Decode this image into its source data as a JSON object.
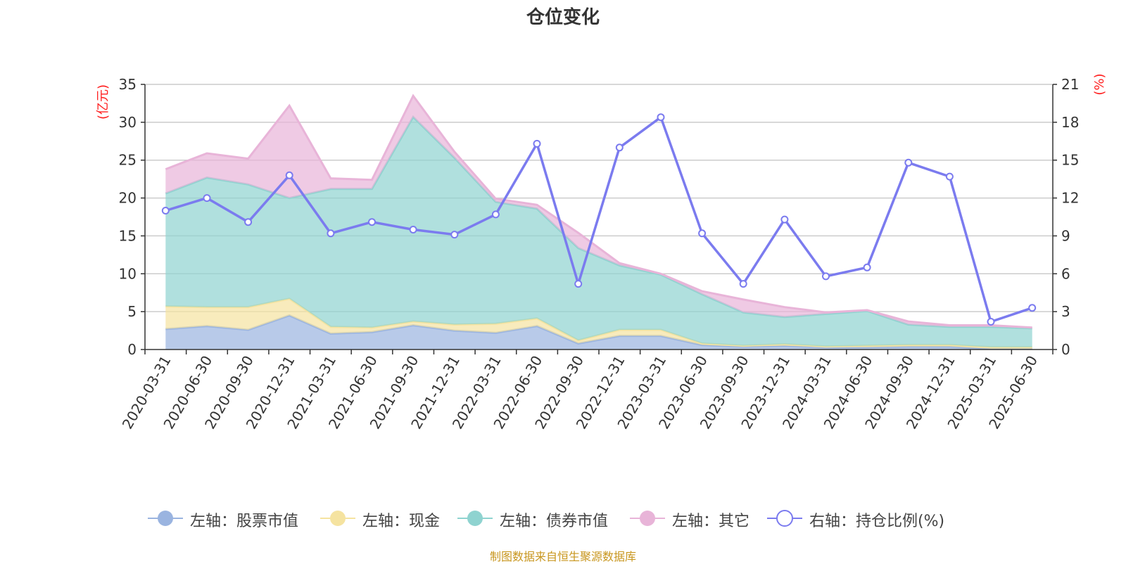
{
  "title": "仓位变化",
  "source": "制图数据来自恒生聚源数据库",
  "chart_data": {
    "type": "area",
    "categories": [
      "2020-03-31",
      "2020-06-30",
      "2020-09-30",
      "2020-12-31",
      "2021-03-31",
      "2021-06-30",
      "2021-09-30",
      "2021-12-31",
      "2022-03-31",
      "2022-06-30",
      "2022-09-30",
      "2022-12-31",
      "2023-03-31",
      "2023-06-30",
      "2023-09-30",
      "2023-12-31",
      "2024-03-31",
      "2024-06-30",
      "2024-09-30",
      "2024-12-31",
      "2025-03-31",
      "2025-06-30"
    ],
    "left_axis": {
      "label": "(亿元)",
      "ylim": [
        0,
        35
      ],
      "ticks": [
        0,
        5,
        10,
        15,
        20,
        25,
        30,
        35
      ]
    },
    "right_axis": {
      "label": "(%)",
      "ylim": [
        0,
        21
      ],
      "ticks": [
        0,
        3,
        6,
        9,
        12,
        15,
        18,
        21
      ]
    },
    "grid": true,
    "legend_position": "bottom",
    "stacked_series": [
      {
        "name": "左轴：股票市值",
        "color": "#9ab4e0",
        "values": [
          2.7,
          3.1,
          2.6,
          4.5,
          2.1,
          2.3,
          3.2,
          2.5,
          2.2,
          3.1,
          0.8,
          1.8,
          1.8,
          0.6,
          0.4,
          0.5,
          0.3,
          0.3,
          0.4,
          0.4,
          0.1,
          0.1
        ]
      },
      {
        "name": "左轴：现金",
        "color": "#f5e3a0",
        "values": [
          3.0,
          2.5,
          3.0,
          2.2,
          0.9,
          0.6,
          0.5,
          0.8,
          1.2,
          1.0,
          0.4,
          0.8,
          0.8,
          0.2,
          0.1,
          0.2,
          0.1,
          0.2,
          0.2,
          0.2,
          0.2,
          0.2
        ]
      },
      {
        "name": "左轴：债券市值",
        "color": "#8fd3d0",
        "values": [
          14.9,
          17.1,
          16.2,
          13.3,
          18.2,
          18.3,
          27.0,
          22.0,
          16.1,
          14.5,
          12.2,
          8.5,
          7.3,
          6.5,
          4.4,
          3.6,
          4.3,
          4.6,
          2.7,
          2.4,
          2.7,
          2.5
        ]
      },
      {
        "name": "左轴：其它",
        "color": "#e8b4d8",
        "values": [
          3.2,
          3.2,
          3.4,
          12.2,
          1.4,
          1.2,
          2.8,
          0.8,
          0.4,
          0.5,
          2.0,
          0.3,
          0.1,
          0.4,
          1.7,
          1.3,
          0.2,
          0.1,
          0.4,
          0.2,
          0.2,
          0.1
        ]
      }
    ],
    "line_series": {
      "name": "右轴：持仓比例(%)",
      "color": "#7b7bef",
      "axis": "right",
      "values": [
        11.0,
        12.0,
        10.1,
        13.8,
        9.2,
        10.1,
        9.5,
        9.1,
        10.7,
        16.3,
        5.2,
        16.0,
        18.4,
        9.2,
        5.2,
        10.3,
        5.8,
        6.5,
        14.8,
        13.7,
        2.2,
        3.3
      ]
    }
  }
}
